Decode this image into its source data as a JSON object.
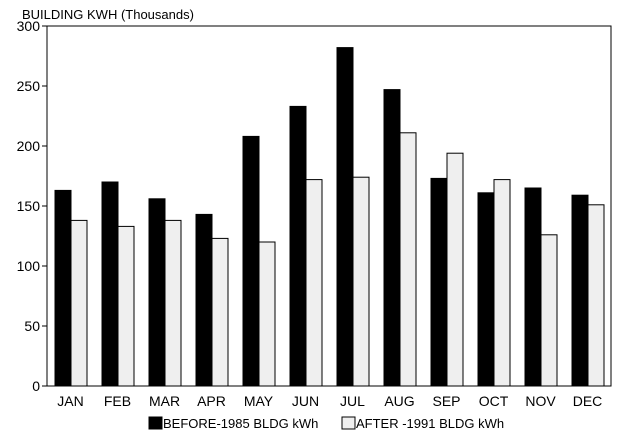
{
  "chart_data": {
    "type": "bar",
    "title": "BUILDING KWH (Thousands)",
    "xlabel": "",
    "ylabel": "",
    "ylim": [
      0,
      300
    ],
    "yticks": [
      0,
      50,
      100,
      150,
      200,
      250,
      300
    ],
    "grid": false,
    "legend_position": "bottom",
    "categories": [
      "JAN",
      "FEB",
      "MAR",
      "APR",
      "MAY",
      "JUN",
      "JUL",
      "AUG",
      "SEP",
      "OCT",
      "NOV",
      "DEC"
    ],
    "series": [
      {
        "name": "BEFORE-1985 BLDG kWh",
        "color": "#000000",
        "values": [
          163,
          170,
          156,
          143,
          208,
          233,
          282,
          247,
          173,
          161,
          165,
          159
        ]
      },
      {
        "name": "AFTER -1991 BLDG kWh",
        "color": "#efefef",
        "values": [
          138,
          133,
          138,
          123,
          120,
          172,
          174,
          211,
          194,
          172,
          126,
          151
        ]
      }
    ]
  }
}
